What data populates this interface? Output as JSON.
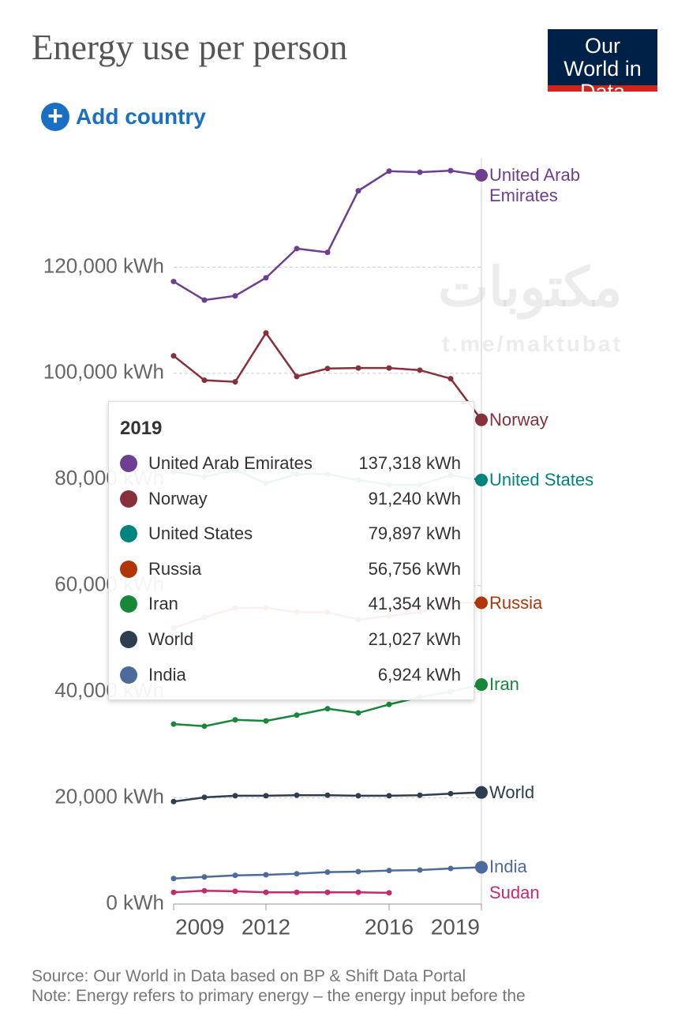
{
  "header": {
    "title": "Energy use per person",
    "add_button": "Add country",
    "logo": "Our World in Data"
  },
  "watermark": [
    "مکتوبات",
    "t.me/maktubat"
  ],
  "chart_data": {
    "type": "line",
    "x": [
      2009,
      2010,
      2011,
      2012,
      2013,
      2014,
      2015,
      2016,
      2017,
      2018,
      2019
    ],
    "xlim": [
      2009,
      2019
    ],
    "xticks": [
      2009,
      2012,
      2016,
      2019
    ],
    "ylim": [
      0,
      140000
    ],
    "yticks": [
      {
        "value": 0,
        "label": "0 kWh"
      },
      {
        "value": 20000,
        "label": "20,000 kWh"
      },
      {
        "value": 40000,
        "label": "40,000 kWh"
      },
      {
        "value": 60000,
        "label": "60,000 kWh"
      },
      {
        "value": 80000,
        "label": "80,000 kWh"
      },
      {
        "value": 100000,
        "label": "100,000 kWh"
      },
      {
        "value": 120000,
        "label": "120,000 kWh"
      }
    ],
    "grid": true,
    "series": [
      {
        "name": "United Arab Emirates",
        "color": "#6d3e91",
        "values": [
          117300,
          113800,
          114600,
          118000,
          123500,
          122800,
          134400,
          138100,
          137900,
          138200,
          137318
        ],
        "value_labels": [
          null,
          null,
          null,
          null,
          null,
          null,
          null,
          null,
          null,
          null,
          "137,318 kWh"
        ]
      },
      {
        "name": "Norway",
        "color": "#883039",
        "values": [
          103300,
          98700,
          98400,
          107600,
          99400,
          100900,
          101000,
          101000,
          100600,
          99000,
          91240
        ],
        "value_labels": [
          null,
          null,
          null,
          null,
          null,
          null,
          null,
          null,
          null,
          null,
          "91,240 kWh"
        ]
      },
      {
        "name": "United States",
        "color": "#00847e",
        "values": [
          81500,
          80500,
          81800,
          79300,
          81000,
          81000,
          79900,
          79000,
          79000,
          80800,
          79897
        ],
        "value_labels": [
          null,
          null,
          null,
          null,
          null,
          null,
          null,
          null,
          null,
          null,
          "79,897 kWh"
        ]
      },
      {
        "name": "Russia",
        "color": "#b13507",
        "values": [
          52000,
          54000,
          55800,
          55800,
          55000,
          55000,
          53600,
          54300,
          55000,
          56800,
          56756
        ],
        "value_labels": [
          null,
          null,
          null,
          null,
          null,
          null,
          null,
          null,
          null,
          null,
          "56,756 kWh"
        ]
      },
      {
        "name": "Iran",
        "color": "#18873a",
        "values": [
          33900,
          33500,
          34700,
          34500,
          35600,
          36800,
          36000,
          37600,
          39000,
          40000,
          41354
        ],
        "value_labels": [
          null,
          null,
          null,
          null,
          null,
          null,
          null,
          null,
          null,
          null,
          "41,354 kWh"
        ]
      },
      {
        "name": "World",
        "color": "#2d3e50",
        "values": [
          19300,
          20100,
          20400,
          20400,
          20500,
          20500,
          20400,
          20400,
          20500,
          20800,
          21027
        ],
        "value_labels": [
          null,
          null,
          null,
          null,
          null,
          null,
          null,
          null,
          null,
          null,
          "21,027 kWh"
        ]
      },
      {
        "name": "India",
        "color": "#4c6a9c",
        "values": [
          4800,
          5100,
          5400,
          5500,
          5700,
          6000,
          6100,
          6300,
          6400,
          6700,
          6924
        ],
        "value_labels": [
          null,
          null,
          null,
          null,
          null,
          null,
          null,
          null,
          null,
          null,
          "6,924 kWh"
        ]
      },
      {
        "name": "Sudan",
        "color": "#c7286e",
        "values": [
          2200,
          2500,
          2400,
          2200,
          2200,
          2200,
          2200,
          2100,
          null,
          null,
          null
        ]
      }
    ]
  },
  "footer": {
    "source": "Source: Our World in Data based on BP & Shift Data Portal",
    "note": "Note: Energy refers to primary energy – the energy input before the"
  }
}
